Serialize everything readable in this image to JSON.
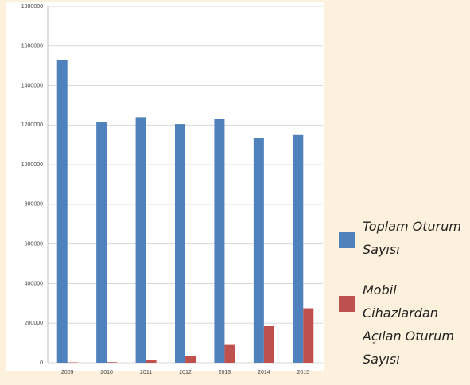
{
  "chart_data": {
    "type": "bar",
    "categories": [
      "2009",
      "2010",
      "2011",
      "2012",
      "2013",
      "2014",
      "2015"
    ],
    "series": [
      {
        "name": "Toplam Oturum Sayısı",
        "color": "#4f81bd",
        "values": [
          1530000,
          1215000,
          1240000,
          1205000,
          1230000,
          1135000,
          1150000
        ]
      },
      {
        "name": "Mobil Cihazlardan Açılan Oturum Sayısı",
        "color": "#c0504d",
        "values": [
          2000,
          3000,
          12000,
          35000,
          90000,
          185000,
          275000
        ]
      }
    ],
    "ylim": [
      0,
      1800000
    ],
    "yticks": [
      0,
      200000,
      400000,
      600000,
      800000,
      1000000,
      1200000,
      1400000,
      1600000,
      1800000
    ],
    "grid": true,
    "legend": "right"
  }
}
